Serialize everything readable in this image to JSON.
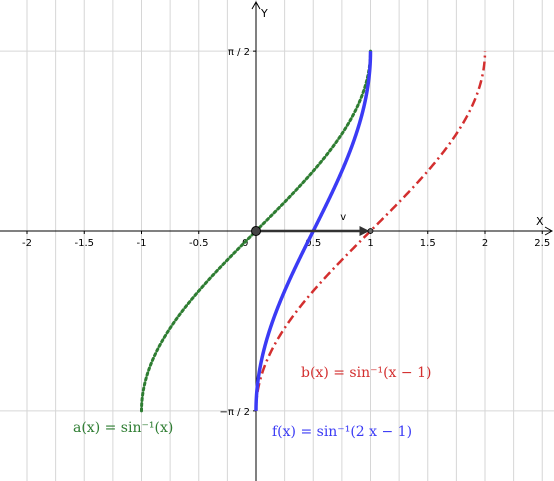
{
  "chart_data": {
    "type": "line",
    "title": "",
    "xlabel": "X",
    "ylabel": "Y",
    "xlim": [
      -2.2,
      2.6
    ],
    "ylim": [
      -2.18,
      2.05
    ],
    "grid": true,
    "x_ticks": [
      {
        "value": -2,
        "label": "-2"
      },
      {
        "value": -1.5,
        "label": "-1.5"
      },
      {
        "value": -1,
        "label": "-1"
      },
      {
        "value": -0.5,
        "label": "-0.5"
      },
      {
        "value": 0,
        "label": "0"
      },
      {
        "value": 0.5,
        "label": "0.5"
      },
      {
        "value": 1,
        "label": "1"
      },
      {
        "value": 1.5,
        "label": "1.5"
      },
      {
        "value": 2,
        "label": "2"
      },
      {
        "value": 2.5,
        "label": "2.5"
      }
    ],
    "y_ticks": [
      {
        "value": 1.5708,
        "label": "π / 2"
      },
      {
        "value": -1.5708,
        "label": "−π / 2"
      }
    ],
    "series": [
      {
        "name": "a(x) = sin⁻¹(x)",
        "function": "asin(x)",
        "domain": [
          -1,
          1
        ],
        "color": "#2e7d32",
        "style": "dotted",
        "label_text": "a(x)  =  sin⁻¹(x)"
      },
      {
        "name": "b(x) = sin⁻¹(x − 1)",
        "function": "asin(x-1)",
        "domain": [
          0,
          2
        ],
        "color": "#d32f2f",
        "style": "dashdot",
        "label_text": "b(x)  =  sin⁻¹(x − 1)"
      },
      {
        "name": "f(x) = sin⁻¹(2 x − 1)",
        "function": "asin(2x-1)",
        "domain": [
          0,
          1
        ],
        "color": "#3b3bf5",
        "style": "solid",
        "label_text": "f(x)  =  sin⁻¹(2 x − 1)"
      }
    ],
    "vector": {
      "label": "v",
      "from": [
        0,
        0
      ],
      "to": [
        1,
        0
      ]
    },
    "points": [
      {
        "x": 0,
        "y": 0
      },
      {
        "x": 1,
        "y": 0
      }
    ]
  }
}
